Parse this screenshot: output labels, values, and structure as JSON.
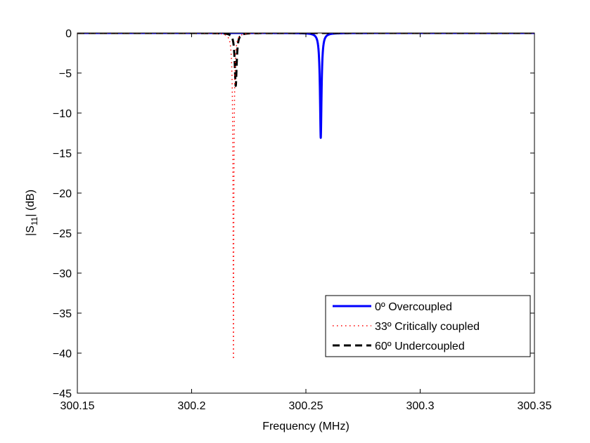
{
  "chart_data": {
    "type": "line",
    "xlabel": "Frequency (MHz)",
    "ylabel": {
      "pre": "|S",
      "sub": "11",
      "post": "| (dB)"
    },
    "xlim": [
      300.15,
      300.35
    ],
    "ylim": [
      -45,
      0
    ],
    "xticks": [
      300.15,
      300.2,
      300.25,
      300.3,
      300.35
    ],
    "xtick_labels": [
      "300.15",
      "300.2",
      "300.25",
      "300.3",
      "300.35"
    ],
    "yticks": [
      0,
      -5,
      -10,
      -15,
      -20,
      -25,
      -30,
      -35,
      -40,
      -45
    ],
    "ytick_labels": [
      "0",
      "−5",
      "−10",
      "−15",
      "−20",
      "−25",
      "−30",
      "−35",
      "−40",
      "−45"
    ],
    "grid": false,
    "legend_position": "lower-right",
    "series": [
      {
        "name": "0º Overcoupled",
        "color": "#0000ff",
        "style": "solid",
        "f0": 300.2565,
        "min_db": -13.1,
        "halfwidth": 0.0006
      },
      {
        "name": "33º Critically coupled",
        "color": "#ff0000",
        "style": "dotted",
        "f0": 300.2183,
        "min_db": -40.8,
        "halfwidth": 0.0006
      },
      {
        "name": "60º Undercoupled",
        "color": "#000000",
        "style": "dashed",
        "f0": 300.2193,
        "min_db": -6.6,
        "halfwidth": 0.0006
      }
    ]
  }
}
